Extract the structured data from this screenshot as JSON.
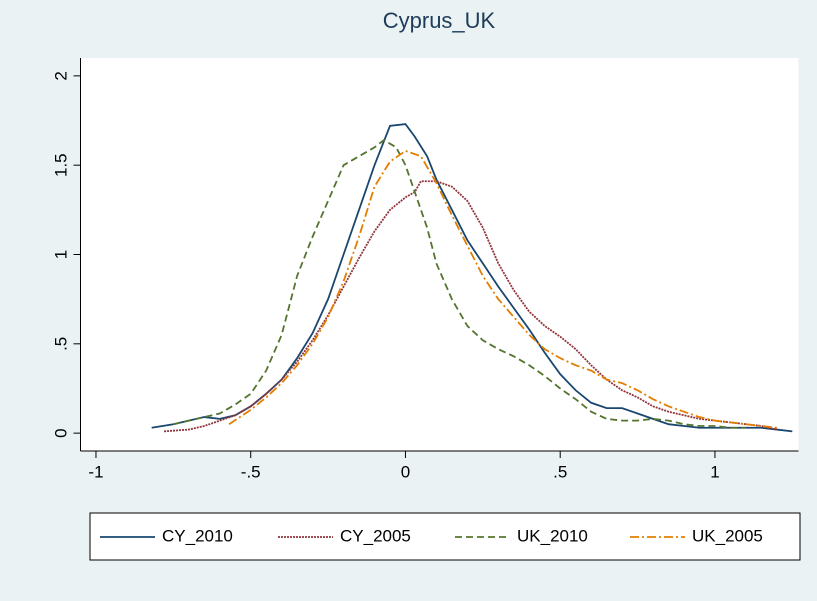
{
  "chart_data": {
    "type": "line",
    "title": "Cyprus_UK",
    "xlim": [
      -1.05,
      1.27
    ],
    "xticks": [
      -1,
      {
        "value": -0.5,
        "label": "-.5"
      },
      0,
      {
        "value": 0.5,
        "label": ".5"
      },
      1
    ],
    "ylim": [
      -0.1,
      2.1
    ],
    "yticks": [
      0,
      {
        "value": 0.5,
        "label": ".5"
      },
      1,
      {
        "value": 1.5,
        "label": "1.5"
      },
      2
    ],
    "grid": false,
    "legend": "bottom",
    "series": [
      {
        "name": "CY_2010",
        "color": "#1a476f",
        "dash": "solid",
        "x": [
          -0.82,
          -0.75,
          -0.7,
          -0.65,
          -0.6,
          -0.55,
          -0.5,
          -0.45,
          -0.4,
          -0.35,
          -0.3,
          -0.25,
          -0.2,
          -0.15,
          -0.1,
          -0.05,
          0,
          0.03,
          0.07,
          0.1,
          0.15,
          0.2,
          0.25,
          0.3,
          0.35,
          0.4,
          0.45,
          0.5,
          0.55,
          0.6,
          0.65,
          0.7,
          0.75,
          0.8,
          0.85,
          0.9,
          0.95,
          1.0,
          1.05,
          1.1,
          1.15,
          1.2,
          1.25
        ],
        "values": [
          0.03,
          0.05,
          0.07,
          0.09,
          0.08,
          0.1,
          0.15,
          0.22,
          0.3,
          0.42,
          0.56,
          0.75,
          1.0,
          1.25,
          1.5,
          1.72,
          1.73,
          1.66,
          1.55,
          1.42,
          1.25,
          1.08,
          0.95,
          0.82,
          0.7,
          0.58,
          0.45,
          0.33,
          0.24,
          0.17,
          0.14,
          0.14,
          0.11,
          0.08,
          0.05,
          0.04,
          0.03,
          0.03,
          0.03,
          0.03,
          0.03,
          0.02,
          0.01
        ]
      },
      {
        "name": "CY_2005",
        "color": "#90353b",
        "dash": "dot",
        "x": [
          -0.78,
          -0.7,
          -0.65,
          -0.6,
          -0.55,
          -0.5,
          -0.45,
          -0.4,
          -0.35,
          -0.3,
          -0.25,
          -0.2,
          -0.15,
          -0.1,
          -0.05,
          0,
          0.03,
          0.05,
          0.1,
          0.15,
          0.2,
          0.25,
          0.3,
          0.35,
          0.4,
          0.45,
          0.5,
          0.55,
          0.6,
          0.65,
          0.7,
          0.75,
          0.8,
          0.85,
          0.9,
          0.95,
          1.0,
          1.05,
          1.1,
          1.15,
          1.2
        ],
        "values": [
          0.01,
          0.02,
          0.04,
          0.07,
          0.1,
          0.15,
          0.22,
          0.3,
          0.4,
          0.52,
          0.66,
          0.82,
          0.98,
          1.13,
          1.25,
          1.32,
          1.35,
          1.41,
          1.41,
          1.38,
          1.3,
          1.15,
          0.95,
          0.8,
          0.68,
          0.6,
          0.54,
          0.47,
          0.38,
          0.3,
          0.24,
          0.2,
          0.15,
          0.12,
          0.1,
          0.08,
          0.07,
          0.06,
          0.05,
          0.04,
          0.02
        ]
      },
      {
        "name": "UK_2010",
        "color": "#55752f",
        "dash": "dash",
        "x": [
          -0.75,
          -0.7,
          -0.65,
          -0.6,
          -0.55,
          -0.5,
          -0.45,
          -0.4,
          -0.35,
          -0.3,
          -0.25,
          -0.2,
          -0.15,
          -0.1,
          -0.07,
          -0.03,
          0,
          0.03,
          0.07,
          0.1,
          0.15,
          0.2,
          0.25,
          0.3,
          0.35,
          0.4,
          0.45,
          0.5,
          0.55,
          0.6,
          0.65,
          0.7,
          0.75,
          0.8,
          0.85,
          0.9,
          0.95,
          1.0,
          1.05,
          1.1
        ],
        "values": [
          0.05,
          0.07,
          0.09,
          0.11,
          0.16,
          0.22,
          0.35,
          0.55,
          0.88,
          1.1,
          1.3,
          1.5,
          1.55,
          1.6,
          1.64,
          1.6,
          1.5,
          1.35,
          1.15,
          0.95,
          0.75,
          0.6,
          0.52,
          0.47,
          0.43,
          0.38,
          0.32,
          0.25,
          0.19,
          0.12,
          0.08,
          0.07,
          0.07,
          0.08,
          0.07,
          0.05,
          0.04,
          0.04,
          0.03,
          0.03
        ]
      },
      {
        "name": "UK_2005",
        "color": "#e37e00",
        "dash": "dashdot",
        "x": [
          -0.57,
          -0.5,
          -0.45,
          -0.4,
          -0.35,
          -0.3,
          -0.25,
          -0.2,
          -0.15,
          -0.1,
          -0.05,
          0,
          0.05,
          0.1,
          0.15,
          0.2,
          0.25,
          0.3,
          0.35,
          0.4,
          0.45,
          0.5,
          0.55,
          0.6,
          0.65,
          0.7,
          0.75,
          0.8,
          0.85,
          0.9,
          0.95,
          1.0,
          1.05,
          1.1,
          1.15,
          1.2
        ],
        "values": [
          0.05,
          0.13,
          0.2,
          0.28,
          0.38,
          0.5,
          0.65,
          0.85,
          1.1,
          1.38,
          1.52,
          1.58,
          1.55,
          1.4,
          1.22,
          1.05,
          0.88,
          0.75,
          0.65,
          0.55,
          0.47,
          0.42,
          0.38,
          0.35,
          0.3,
          0.28,
          0.24,
          0.19,
          0.15,
          0.12,
          0.09,
          0.07,
          0.06,
          0.05,
          0.04,
          0.03
        ]
      }
    ]
  }
}
